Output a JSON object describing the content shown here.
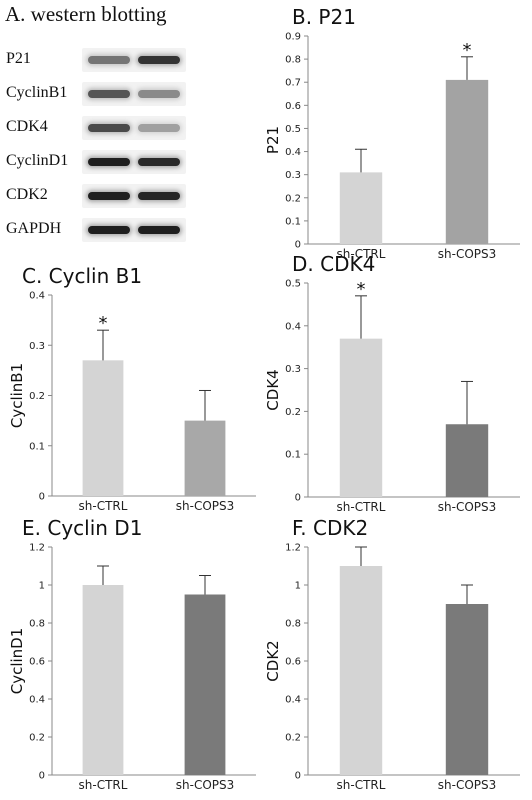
{
  "western_blot": {
    "title": "A. western blotting",
    "labels": [
      "P21",
      "CyclinB1",
      "CDK4",
      "CyclinD1",
      "CDK2",
      "GAPDH"
    ],
    "band_intensity": [
      [
        0.55,
        0.85
      ],
      [
        0.7,
        0.45
      ],
      [
        0.75,
        0.35
      ],
      [
        0.95,
        0.9
      ],
      [
        0.95,
        0.92
      ],
      [
        0.95,
        0.95
      ]
    ]
  },
  "chart_data": [
    {
      "type": "bar",
      "title": "B. P21",
      "ylabel": "P21",
      "categories": [
        "sh-CTRL",
        "sh-COPS3"
      ],
      "values": [
        0.31,
        0.71
      ],
      "errors": [
        0.1,
        0.1
      ],
      "significance": [
        "",
        "*"
      ],
      "ylim": [
        0,
        0.9
      ],
      "yticks": [
        0,
        0.1,
        0.2,
        0.3,
        0.4,
        0.5,
        0.6,
        0.7,
        0.8,
        0.9
      ],
      "ytick_labels": [
        "0",
        "0.1",
        "0.2",
        "0.3",
        "0.4",
        "0.5",
        "0.6",
        "0.7",
        "0.8",
        "0.9"
      ],
      "bar_colors": [
        "#d4d4d4",
        "#a3a3a3"
      ]
    },
    {
      "type": "bar",
      "title": "C. Cyclin B1",
      "ylabel": "CyclinB1",
      "categories": [
        "sh-CTRL",
        "sh-COPS3"
      ],
      "values": [
        0.27,
        0.15
      ],
      "errors": [
        0.06,
        0.06
      ],
      "significance": [
        "*",
        ""
      ],
      "ylim": [
        0,
        0.4
      ],
      "yticks": [
        0,
        0.1,
        0.2,
        0.3,
        0.4
      ],
      "ytick_labels": [
        "0",
        "0.1",
        "0.2",
        "0.3",
        "0.4"
      ],
      "bar_colors": [
        "#d4d4d4",
        "#a8a8a8"
      ]
    },
    {
      "type": "bar",
      "title": "D. CDK4",
      "ylabel": "CDK4",
      "categories": [
        "sh-CTRL",
        "sh-COPS3"
      ],
      "values": [
        0.37,
        0.17
      ],
      "errors": [
        0.1,
        0.1
      ],
      "significance": [
        "*",
        ""
      ],
      "ylim": [
        0,
        0.5
      ],
      "yticks": [
        0,
        0.1,
        0.2,
        0.3,
        0.4,
        0.5
      ],
      "ytick_labels": [
        "0",
        "0.1",
        "0.2",
        "0.3",
        "0.4",
        "0.5"
      ],
      "bar_colors": [
        "#d4d4d4",
        "#7a7a7a"
      ]
    },
    {
      "type": "bar",
      "title": "E. Cyclin D1",
      "ylabel": "CyclinD1",
      "categories": [
        "sh-CTRL",
        "sh-COPS3"
      ],
      "values": [
        1.0,
        0.95
      ],
      "errors": [
        0.1,
        0.1
      ],
      "significance": [
        "",
        ""
      ],
      "ylim": [
        0,
        1.2
      ],
      "yticks": [
        0,
        0.2,
        0.4,
        0.6,
        0.8,
        1.0,
        1.2
      ],
      "ytick_labels": [
        "0",
        "0.2",
        "0.4",
        "0.6",
        "0.8",
        "1",
        "1.2"
      ],
      "bar_colors": [
        "#d4d4d4",
        "#7a7a7a"
      ]
    },
    {
      "type": "bar",
      "title": "F. CDK2",
      "ylabel": "CDK2",
      "categories": [
        "sh-CTRL",
        "sh-COPS3"
      ],
      "values": [
        1.1,
        0.9
      ],
      "errors": [
        0.1,
        0.1
      ],
      "significance": [
        "",
        ""
      ],
      "ylim": [
        0,
        1.2
      ],
      "yticks": [
        0,
        0.2,
        0.4,
        0.6,
        0.8,
        1.0,
        1.2
      ],
      "ytick_labels": [
        "0",
        "0.2",
        "0.4",
        "0.6",
        "0.8",
        "1",
        "1.2"
      ],
      "bar_colors": [
        "#d4d4d4",
        "#7a7a7a"
      ]
    }
  ]
}
